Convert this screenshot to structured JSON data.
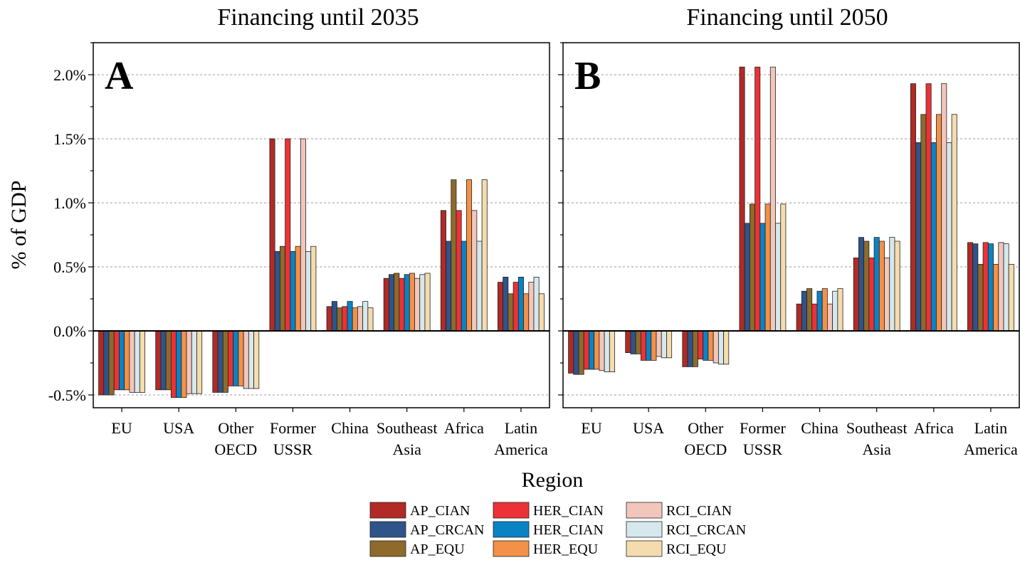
{
  "chart_data": [
    {
      "type": "bar",
      "title": "Financing until 2035",
      "panel_label": "A",
      "ylabel": "% of GDP",
      "xlabel": "Region",
      "ylim": [
        -0.6,
        2.25
      ],
      "yticks": [
        -0.5,
        0.0,
        0.5,
        1.0,
        1.5,
        2.0
      ],
      "ytick_labels": [
        "-0.5%",
        "0.0%",
        "0.5%",
        "1.0%",
        "1.5%",
        "2.0%"
      ],
      "grid": "horizontal dashed",
      "categories": [
        "EU",
        "USA",
        "Other\nOECD",
        "Former\nUSSR",
        "China",
        "Southeast\nAsia",
        "Africa",
        "Latin\nAmerica"
      ],
      "series": [
        {
          "name": "AP_CIAN",
          "values": [
            -0.5,
            -0.46,
            -0.48,
            1.5,
            0.19,
            0.41,
            0.94,
            0.38
          ]
        },
        {
          "name": "AP_CRCAN",
          "values": [
            -0.5,
            -0.46,
            -0.48,
            0.62,
            0.23,
            0.44,
            0.7,
            0.42
          ]
        },
        {
          "name": "AP_EQU",
          "values": [
            -0.5,
            -0.46,
            -0.48,
            0.66,
            0.18,
            0.45,
            1.18,
            0.29
          ]
        },
        {
          "name": "HER_CIAN",
          "values": [
            -0.46,
            -0.52,
            -0.43,
            1.5,
            0.19,
            0.41,
            0.94,
            0.38
          ]
        },
        {
          "name": "HER_CIAN",
          "values": [
            -0.46,
            -0.52,
            -0.43,
            0.62,
            0.23,
            0.44,
            0.7,
            0.42
          ]
        },
        {
          "name": "HER_EQU",
          "values": [
            -0.46,
            -0.52,
            -0.43,
            0.66,
            0.18,
            0.45,
            1.18,
            0.29
          ]
        },
        {
          "name": "RCI_CIAN",
          "values": [
            -0.48,
            -0.49,
            -0.45,
            1.5,
            0.19,
            0.41,
            0.94,
            0.38
          ]
        },
        {
          "name": "RCI_CRCAN",
          "values": [
            -0.48,
            -0.49,
            -0.45,
            0.62,
            0.23,
            0.44,
            0.7,
            0.42
          ]
        },
        {
          "name": "RCI_EQU",
          "values": [
            -0.48,
            -0.49,
            -0.45,
            0.66,
            0.18,
            0.45,
            1.18,
            0.29
          ]
        }
      ]
    },
    {
      "type": "bar",
      "title": "Financing until 2050",
      "panel_label": "B",
      "ylim": [
        -0.6,
        2.25
      ],
      "yticks": [
        -0.5,
        0.0,
        0.5,
        1.0,
        1.5,
        2.0
      ],
      "grid": "horizontal dashed",
      "categories": [
        "EU",
        "USA",
        "Other\nOECD",
        "Former\nUSSR",
        "China",
        "Southeast\nAsia",
        "Africa",
        "Latin\nAmerica"
      ],
      "series": [
        {
          "name": "AP_CIAN",
          "values": [
            -0.33,
            -0.17,
            -0.28,
            2.06,
            0.21,
            0.57,
            1.93,
            0.69
          ]
        },
        {
          "name": "AP_CRCAN",
          "values": [
            -0.34,
            -0.18,
            -0.28,
            0.84,
            0.31,
            0.73,
            1.47,
            0.68
          ]
        },
        {
          "name": "AP_EQU",
          "values": [
            -0.34,
            -0.18,
            -0.28,
            0.99,
            0.33,
            0.7,
            1.69,
            0.52
          ]
        },
        {
          "name": "HER_CIAN",
          "values": [
            -0.3,
            -0.23,
            -0.22,
            2.06,
            0.21,
            0.57,
            1.93,
            0.69
          ]
        },
        {
          "name": "HER_CIAN",
          "values": [
            -0.3,
            -0.23,
            -0.23,
            0.84,
            0.31,
            0.73,
            1.47,
            0.68
          ]
        },
        {
          "name": "HER_EQU",
          "values": [
            -0.3,
            -0.23,
            -0.23,
            0.99,
            0.33,
            0.7,
            1.69,
            0.52
          ]
        },
        {
          "name": "RCI_CIAN",
          "values": [
            -0.31,
            -0.2,
            -0.25,
            2.06,
            0.21,
            0.57,
            1.93,
            0.69
          ]
        },
        {
          "name": "RCI_CRCAN",
          "values": [
            -0.32,
            -0.21,
            -0.26,
            0.84,
            0.31,
            0.73,
            1.47,
            0.68
          ]
        },
        {
          "name": "RCI_EQU",
          "values": [
            -0.32,
            -0.21,
            -0.26,
            0.99,
            0.33,
            0.7,
            1.69,
            0.52
          ]
        }
      ]
    }
  ],
  "colors": [
    "#b22a25",
    "#2e548a",
    "#8e6a2c",
    "#ec3236",
    "#0a83c4",
    "#f39148",
    "#f2c6bb",
    "#d6e8ec",
    "#f4dcae"
  ],
  "legend": {
    "placement": "bottom-center",
    "items": [
      "AP_CIAN",
      "AP_CRCAN",
      "AP_EQU",
      "HER_CIAN",
      "HER_CIAN",
      "HER_EQU",
      "RCI_CIAN",
      "RCI_CRCAN",
      "RCI_EQU"
    ]
  }
}
